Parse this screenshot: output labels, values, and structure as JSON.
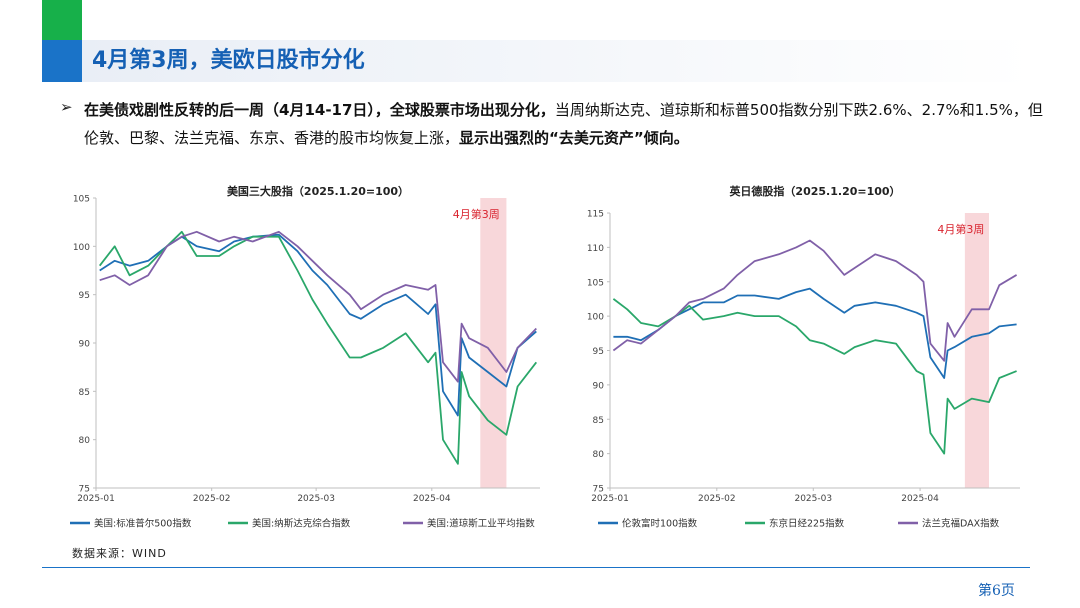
{
  "header": {
    "title": "4月第3周，美欧日股市分化"
  },
  "paragraph": {
    "bullet": "➢",
    "s1": "在美债戏剧性反转的后一周（4月14-17日），全球股票市场出现分化，",
    "s2": "当周纳斯达克、道琼斯和标普500指数分别下跌2.6%、2.7%和1.5%，但伦敦、巴黎、法兰克福、东京、香港的股市均恢复上涨，",
    "s3": "显示出强烈的“去美元资产”倾向。"
  },
  "footer": {
    "source": "数据来源：WIND",
    "page": "第6页"
  },
  "chart_data": [
    {
      "type": "line",
      "title": "美国三大股指（2025.1.20=100）",
      "ylim": [
        75,
        105
      ],
      "yticks": [
        "75",
        "80",
        "85",
        "90",
        "95",
        "100",
        "105"
      ],
      "xlim": [
        "2025-01-01",
        "2025-04-30"
      ],
      "xtick_labels": [
        "2025-01",
        "2025-02",
        "2025-03",
        "2025-04"
      ],
      "xtick_dates": [
        "2025-01-01",
        "2025-02-01",
        "2025-03-01",
        "2025-04-01"
      ],
      "highlight": {
        "label": "4月第3周",
        "from": "2025-04-14",
        "to": "2025-04-21",
        "color": "#f8d7da"
      },
      "grid": false,
      "legend_position": "bottom",
      "x": [
        "2025-01-02",
        "2025-01-06",
        "2025-01-10",
        "2025-01-15",
        "2025-01-20",
        "2025-01-24",
        "2025-01-28",
        "2025-02-03",
        "2025-02-07",
        "2025-02-12",
        "2025-02-19",
        "2025-02-24",
        "2025-02-28",
        "2025-03-04",
        "2025-03-10",
        "2025-03-13",
        "2025-03-19",
        "2025-03-25",
        "2025-03-31",
        "2025-04-02",
        "2025-04-04",
        "2025-04-08",
        "2025-04-09",
        "2025-04-11",
        "2025-04-16",
        "2025-04-21",
        "2025-04-24",
        "2025-04-29"
      ],
      "series": [
        {
          "name": "美国:标准普尔500指数",
          "color": "#1f6fb5",
          "values": [
            97.5,
            98.5,
            98.0,
            98.5,
            100.0,
            101.0,
            100.0,
            99.5,
            100.5,
            101.0,
            101.2,
            99.5,
            97.5,
            96.0,
            93.0,
            92.5,
            94.0,
            95.0,
            93.0,
            94.0,
            85.0,
            82.5,
            90.5,
            88.5,
            87.0,
            85.5,
            89.5,
            91.2
          ]
        },
        {
          "name": "美国:纳斯达克综合指数",
          "color": "#2aa76a",
          "values": [
            98.0,
            100.0,
            97.0,
            98.0,
            100.0,
            101.5,
            99.0,
            99.0,
            100.0,
            101.0,
            101.0,
            97.5,
            94.5,
            92.0,
            88.5,
            88.5,
            89.5,
            91.0,
            88.0,
            89.0,
            80.0,
            77.5,
            87.0,
            84.5,
            82.0,
            80.5,
            85.5,
            88.0
          ]
        },
        {
          "name": "美国:道琼斯工业平均指数",
          "color": "#8060a8",
          "values": [
            96.5,
            97.0,
            96.0,
            97.0,
            100.0,
            101.0,
            101.5,
            100.5,
            101.0,
            100.5,
            101.5,
            100.0,
            98.5,
            97.0,
            95.0,
            93.5,
            95.0,
            96.0,
            95.5,
            96.0,
            88.0,
            86.0,
            92.0,
            90.5,
            89.5,
            87.0,
            89.5,
            91.5
          ]
        }
      ]
    },
    {
      "type": "line",
      "title": "英日德股指（2025.1.20=100）",
      "ylim": [
        75,
        115
      ],
      "yticks": [
        "75",
        "80",
        "85",
        "90",
        "95",
        "100",
        "105",
        "110",
        "115"
      ],
      "xlim": [
        "2025-01-01",
        "2025-04-30"
      ],
      "xtick_labels": [
        "2025-01",
        "2025-02",
        "2025-03",
        "2025-04"
      ],
      "xtick_dates": [
        "2025-01-01",
        "2025-02-01",
        "2025-03-01",
        "2025-04-01"
      ],
      "highlight": {
        "label": "4月第3周",
        "from": "2025-04-14",
        "to": "2025-04-21",
        "color": "#f8d7da"
      },
      "grid": false,
      "legend_position": "bottom",
      "x": [
        "2025-01-02",
        "2025-01-06",
        "2025-01-10",
        "2025-01-15",
        "2025-01-20",
        "2025-01-24",
        "2025-01-28",
        "2025-02-03",
        "2025-02-07",
        "2025-02-12",
        "2025-02-19",
        "2025-02-24",
        "2025-02-28",
        "2025-03-04",
        "2025-03-10",
        "2025-03-13",
        "2025-03-19",
        "2025-03-25",
        "2025-03-31",
        "2025-04-02",
        "2025-04-04",
        "2025-04-08",
        "2025-04-09",
        "2025-04-11",
        "2025-04-16",
        "2025-04-21",
        "2025-04-24",
        "2025-04-29"
      ],
      "series": [
        {
          "name": "伦敦富时100指数",
          "color": "#1f6fb5",
          "values": [
            97.0,
            97.0,
            96.5,
            98.0,
            100.0,
            101.0,
            102.0,
            102.0,
            103.0,
            103.0,
            102.5,
            103.5,
            104.0,
            102.5,
            100.5,
            101.5,
            102.0,
            101.5,
            100.5,
            100.0,
            94.0,
            91.0,
            95.0,
            95.5,
            97.0,
            97.5,
            98.5,
            98.8
          ]
        },
        {
          "name": "东京日经225指数",
          "color": "#2aa76a",
          "values": [
            102.5,
            101.0,
            99.0,
            98.5,
            100.0,
            101.5,
            99.5,
            100.0,
            100.5,
            100.0,
            100.0,
            98.5,
            96.5,
            96.0,
            94.5,
            95.5,
            96.5,
            96.0,
            92.0,
            91.5,
            83.0,
            80.0,
            88.0,
            86.5,
            88.0,
            87.5,
            91.0,
            92.0
          ]
        },
        {
          "name": "法兰克福DAX指数",
          "color": "#8060a8",
          "values": [
            95.0,
            96.5,
            96.0,
            98.0,
            100.0,
            102.0,
            102.5,
            104.0,
            106.0,
            108.0,
            109.0,
            110.0,
            111.0,
            109.5,
            106.0,
            107.0,
            109.0,
            108.0,
            106.0,
            105.0,
            96.0,
            93.5,
            99.0,
            97.0,
            101.0,
            101.0,
            104.5,
            106.0
          ]
        }
      ]
    }
  ]
}
